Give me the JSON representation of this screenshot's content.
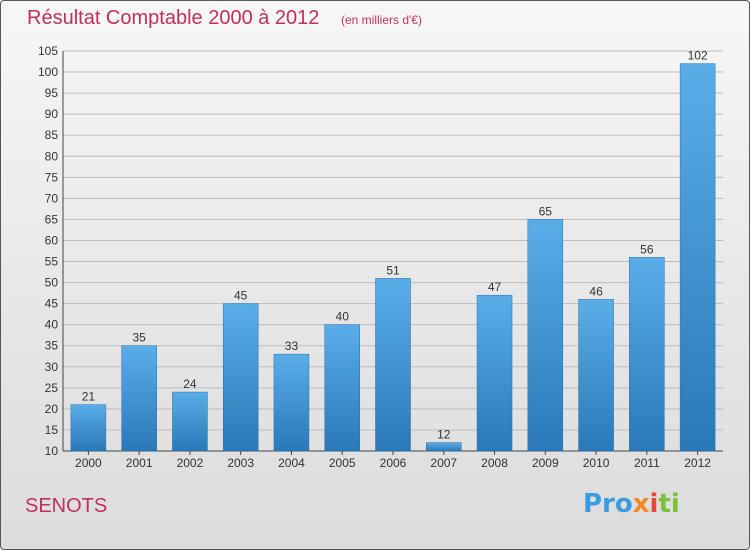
{
  "chart_data": {
    "type": "bar",
    "title": "Résultat Comptable 2000 à 2012",
    "subtitle": "(en milliers d'€)",
    "categories": [
      "2000",
      "2001",
      "2002",
      "2003",
      "2004",
      "2005",
      "2006",
      "2007",
      "2008",
      "2009",
      "2010",
      "2011",
      "2012"
    ],
    "values": [
      21,
      35,
      24,
      45,
      33,
      40,
      51,
      12,
      47,
      65,
      46,
      56,
      102
    ],
    "ylim": [
      10,
      105
    ],
    "yticks": [
      10,
      15,
      20,
      25,
      30,
      35,
      40,
      45,
      50,
      55,
      60,
      65,
      70,
      75,
      80,
      85,
      90,
      95,
      100,
      105
    ],
    "xlabel": "",
    "ylabel": "",
    "grid": true,
    "bar_color_top": "#5aaee8",
    "bar_color_bottom": "#2a78b8"
  },
  "footer": {
    "town": "SENOTS",
    "brand": [
      "Pro",
      "x",
      "i",
      "ti"
    ]
  },
  "colors": {
    "title": "#c0305a",
    "grid": "#bdbdbd"
  }
}
